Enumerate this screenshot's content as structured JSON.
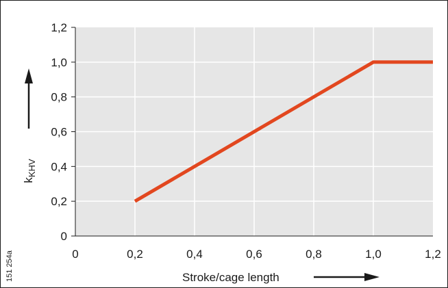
{
  "chart_data": {
    "type": "line",
    "xlabel": "Stroke/cage length",
    "ylabel_main": "k",
    "ylabel_sub": "KHV",
    "xlim": [
      0,
      1.2
    ],
    "ylim": [
      0,
      1.2
    ],
    "xticks": [
      {
        "value": 0,
        "label": "0"
      },
      {
        "value": 0.2,
        "label": "0,2"
      },
      {
        "value": 0.4,
        "label": "0,4"
      },
      {
        "value": 0.6,
        "label": "0,6"
      },
      {
        "value": 0.8,
        "label": "0,8"
      },
      {
        "value": 1.0,
        "label": "1,0"
      },
      {
        "value": 1.2,
        "label": "1,2"
      }
    ],
    "yticks": [
      {
        "value": 0,
        "label": "0"
      },
      {
        "value": 0.2,
        "label": "0,2"
      },
      {
        "value": 0.4,
        "label": "0,4"
      },
      {
        "value": 0.6,
        "label": "0,6"
      },
      {
        "value": 0.8,
        "label": "0,8"
      },
      {
        "value": 1.0,
        "label": "1,0"
      },
      {
        "value": 1.2,
        "label": "1,2"
      }
    ],
    "grid": true,
    "series": [
      {
        "x": [
          0.2,
          1.0,
          1.2
        ],
        "y": [
          0.2,
          1.0,
          1.0
        ]
      }
    ],
    "figure_id": "151 254a"
  },
  "colors": {
    "plot_bg": "#e6e6e6",
    "grid": "#ffffff",
    "line": "#e2471f",
    "ink": "#1a1a1a"
  }
}
